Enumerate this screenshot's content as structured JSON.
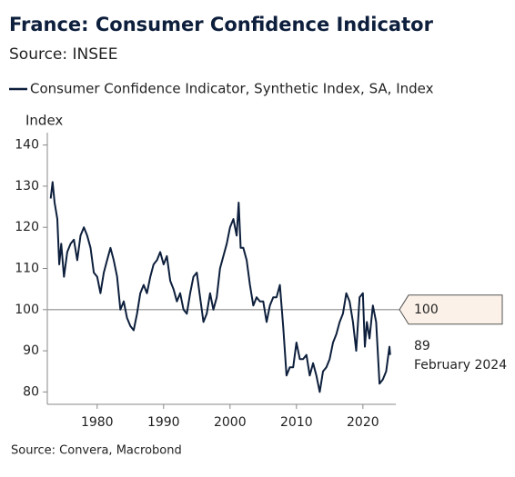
{
  "chart_data": {
    "type": "line",
    "title": "France: Consumer Confidence Indicator",
    "subtitle": "Source: INSEE",
    "y_label": "Index",
    "source": "Source: Convera, Macrobond",
    "reference_line": 100,
    "last_value": 89,
    "last_date": "February 2024",
    "xlim": [
      1972.5,
      2025.5
    ],
    "xticks": [
      1980,
      1990,
      2000,
      2010,
      2020
    ],
    "ylim": [
      77,
      143
    ],
    "yticks": [
      80,
      90,
      100,
      110,
      120,
      130,
      140
    ],
    "x": [
      1973.0,
      1973.3,
      1973.6,
      1974.0,
      1974.3,
      1974.6,
      1975.0,
      1975.5,
      1976.0,
      1976.5,
      1977.0,
      1977.5,
      1978.0,
      1978.5,
      1979.0,
      1979.5,
      1980.0,
      1980.5,
      1981.0,
      1981.5,
      1982.0,
      1982.5,
      1983.0,
      1983.5,
      1984.0,
      1984.5,
      1985.0,
      1985.5,
      1986.0,
      1986.5,
      1987.0,
      1987.5,
      1988.0,
      1988.5,
      1989.0,
      1989.5,
      1990.0,
      1990.5,
      1991.0,
      1991.5,
      1992.0,
      1992.5,
      1993.0,
      1993.5,
      1994.0,
      1994.5,
      1995.0,
      1995.5,
      1996.0,
      1996.5,
      1997.0,
      1997.5,
      1998.0,
      1998.5,
      1999.0,
      1999.5,
      2000.0,
      2000.5,
      2001.0,
      2001.3,
      2001.6,
      2002.0,
      2002.5,
      2003.0,
      2003.5,
      2004.0,
      2004.5,
      2005.0,
      2005.5,
      2006.0,
      2006.5,
      2007.0,
      2007.5,
      2008.0,
      2008.5,
      2009.0,
      2009.5,
      2010.0,
      2010.5,
      2011.0,
      2011.5,
      2012.0,
      2012.5,
      2013.0,
      2013.5,
      2014.0,
      2014.5,
      2015.0,
      2015.5,
      2016.0,
      2016.5,
      2017.0,
      2017.5,
      2018.0,
      2018.5,
      2019.0,
      2019.5,
      2020.0,
      2020.3,
      2020.6,
      2021.0,
      2021.5,
      2022.0,
      2022.5,
      2023.0,
      2023.5,
      2024.0,
      2024.1
    ],
    "series": [
      {
        "name": "Consumer Confidence Indicator, Synthetic Index, SA, Index",
        "color": "#0d1f3c",
        "values": [
          127,
          131,
          126,
          122,
          111,
          116,
          108,
          114,
          116,
          117,
          112,
          118,
          120,
          118,
          115,
          109,
          108,
          104,
          109,
          112,
          115,
          112,
          108,
          100,
          102,
          98,
          96,
          95,
          99,
          104,
          106,
          104,
          108,
          111,
          112,
          114,
          111,
          113,
          107,
          105,
          102,
          104,
          100,
          99,
          104,
          108,
          109,
          103,
          97,
          99,
          104,
          100,
          103,
          110,
          113,
          116,
          120,
          122,
          118,
          126,
          115,
          115,
          112,
          106,
          101,
          103,
          102,
          102,
          97,
          101,
          103,
          103,
          106,
          96,
          84,
          86,
          86,
          92,
          88,
          88,
          89,
          84,
          87,
          84,
          80,
          85,
          86,
          88,
          92,
          94,
          97,
          99,
          104,
          102,
          97,
          90,
          103,
          104,
          91,
          97,
          93,
          101,
          97,
          82,
          83,
          85,
          91,
          89
        ]
      }
    ]
  }
}
